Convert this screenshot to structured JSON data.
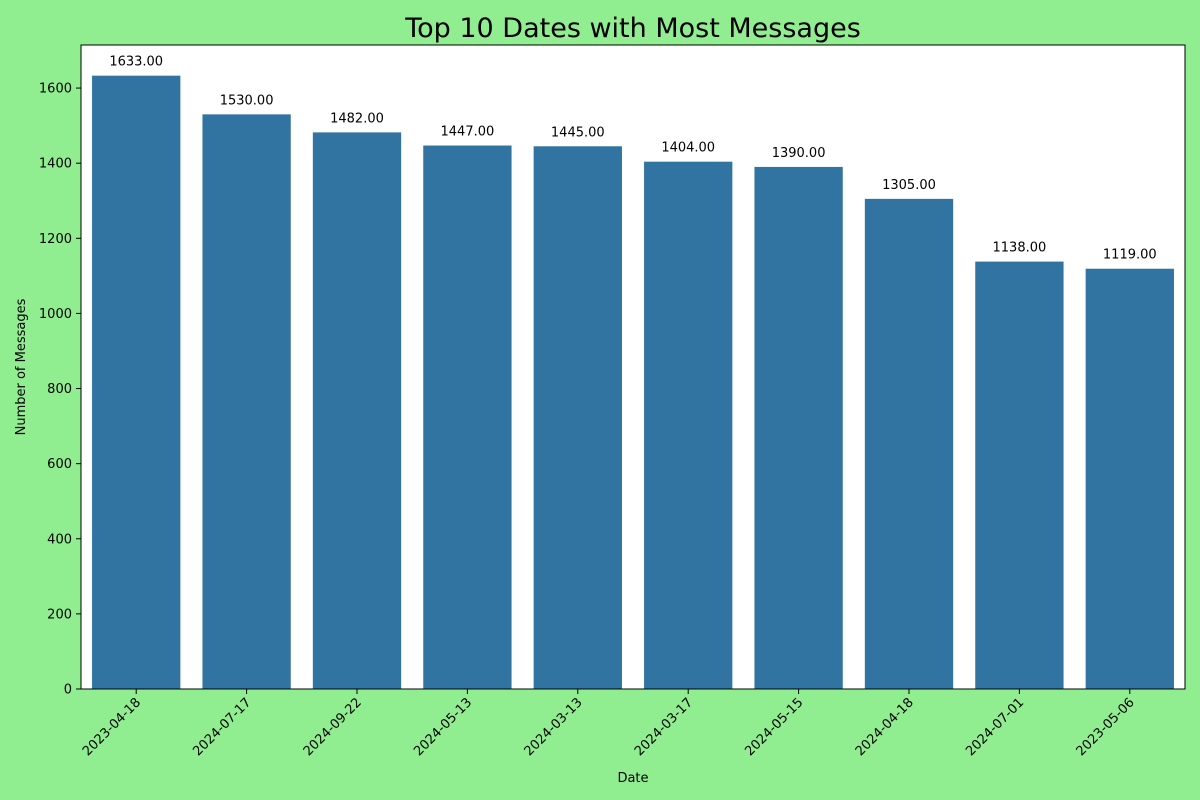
{
  "chart_data": {
    "type": "bar",
    "title": "Top 10 Dates with Most Messages",
    "xlabel": "Date",
    "ylabel": "Number of Messages",
    "categories": [
      "2023-04-18",
      "2024-07-17",
      "2024-09-22",
      "2024-05-13",
      "2024-03-13",
      "2024-03-17",
      "2024-05-15",
      "2024-04-18",
      "2024-07-01",
      "2023-05-06"
    ],
    "values": [
      1633,
      1530,
      1482,
      1447,
      1445,
      1404,
      1390,
      1305,
      1138,
      1119
    ],
    "data_labels": [
      "1633.00",
      "1530.00",
      "1482.00",
      "1447.00",
      "1445.00",
      "1404.00",
      "1390.00",
      "1305.00",
      "1138.00",
      "1119.00"
    ],
    "ylim": [
      0,
      1714.65
    ],
    "yticks": [
      0,
      200,
      400,
      600,
      800,
      1000,
      1200,
      1400,
      1600
    ],
    "grid": false,
    "legend": "none",
    "colors": {
      "figure_background": "#90ee90",
      "plot_background": "#ffffff",
      "bar": "#3274a1",
      "axis": "#000000"
    }
  }
}
